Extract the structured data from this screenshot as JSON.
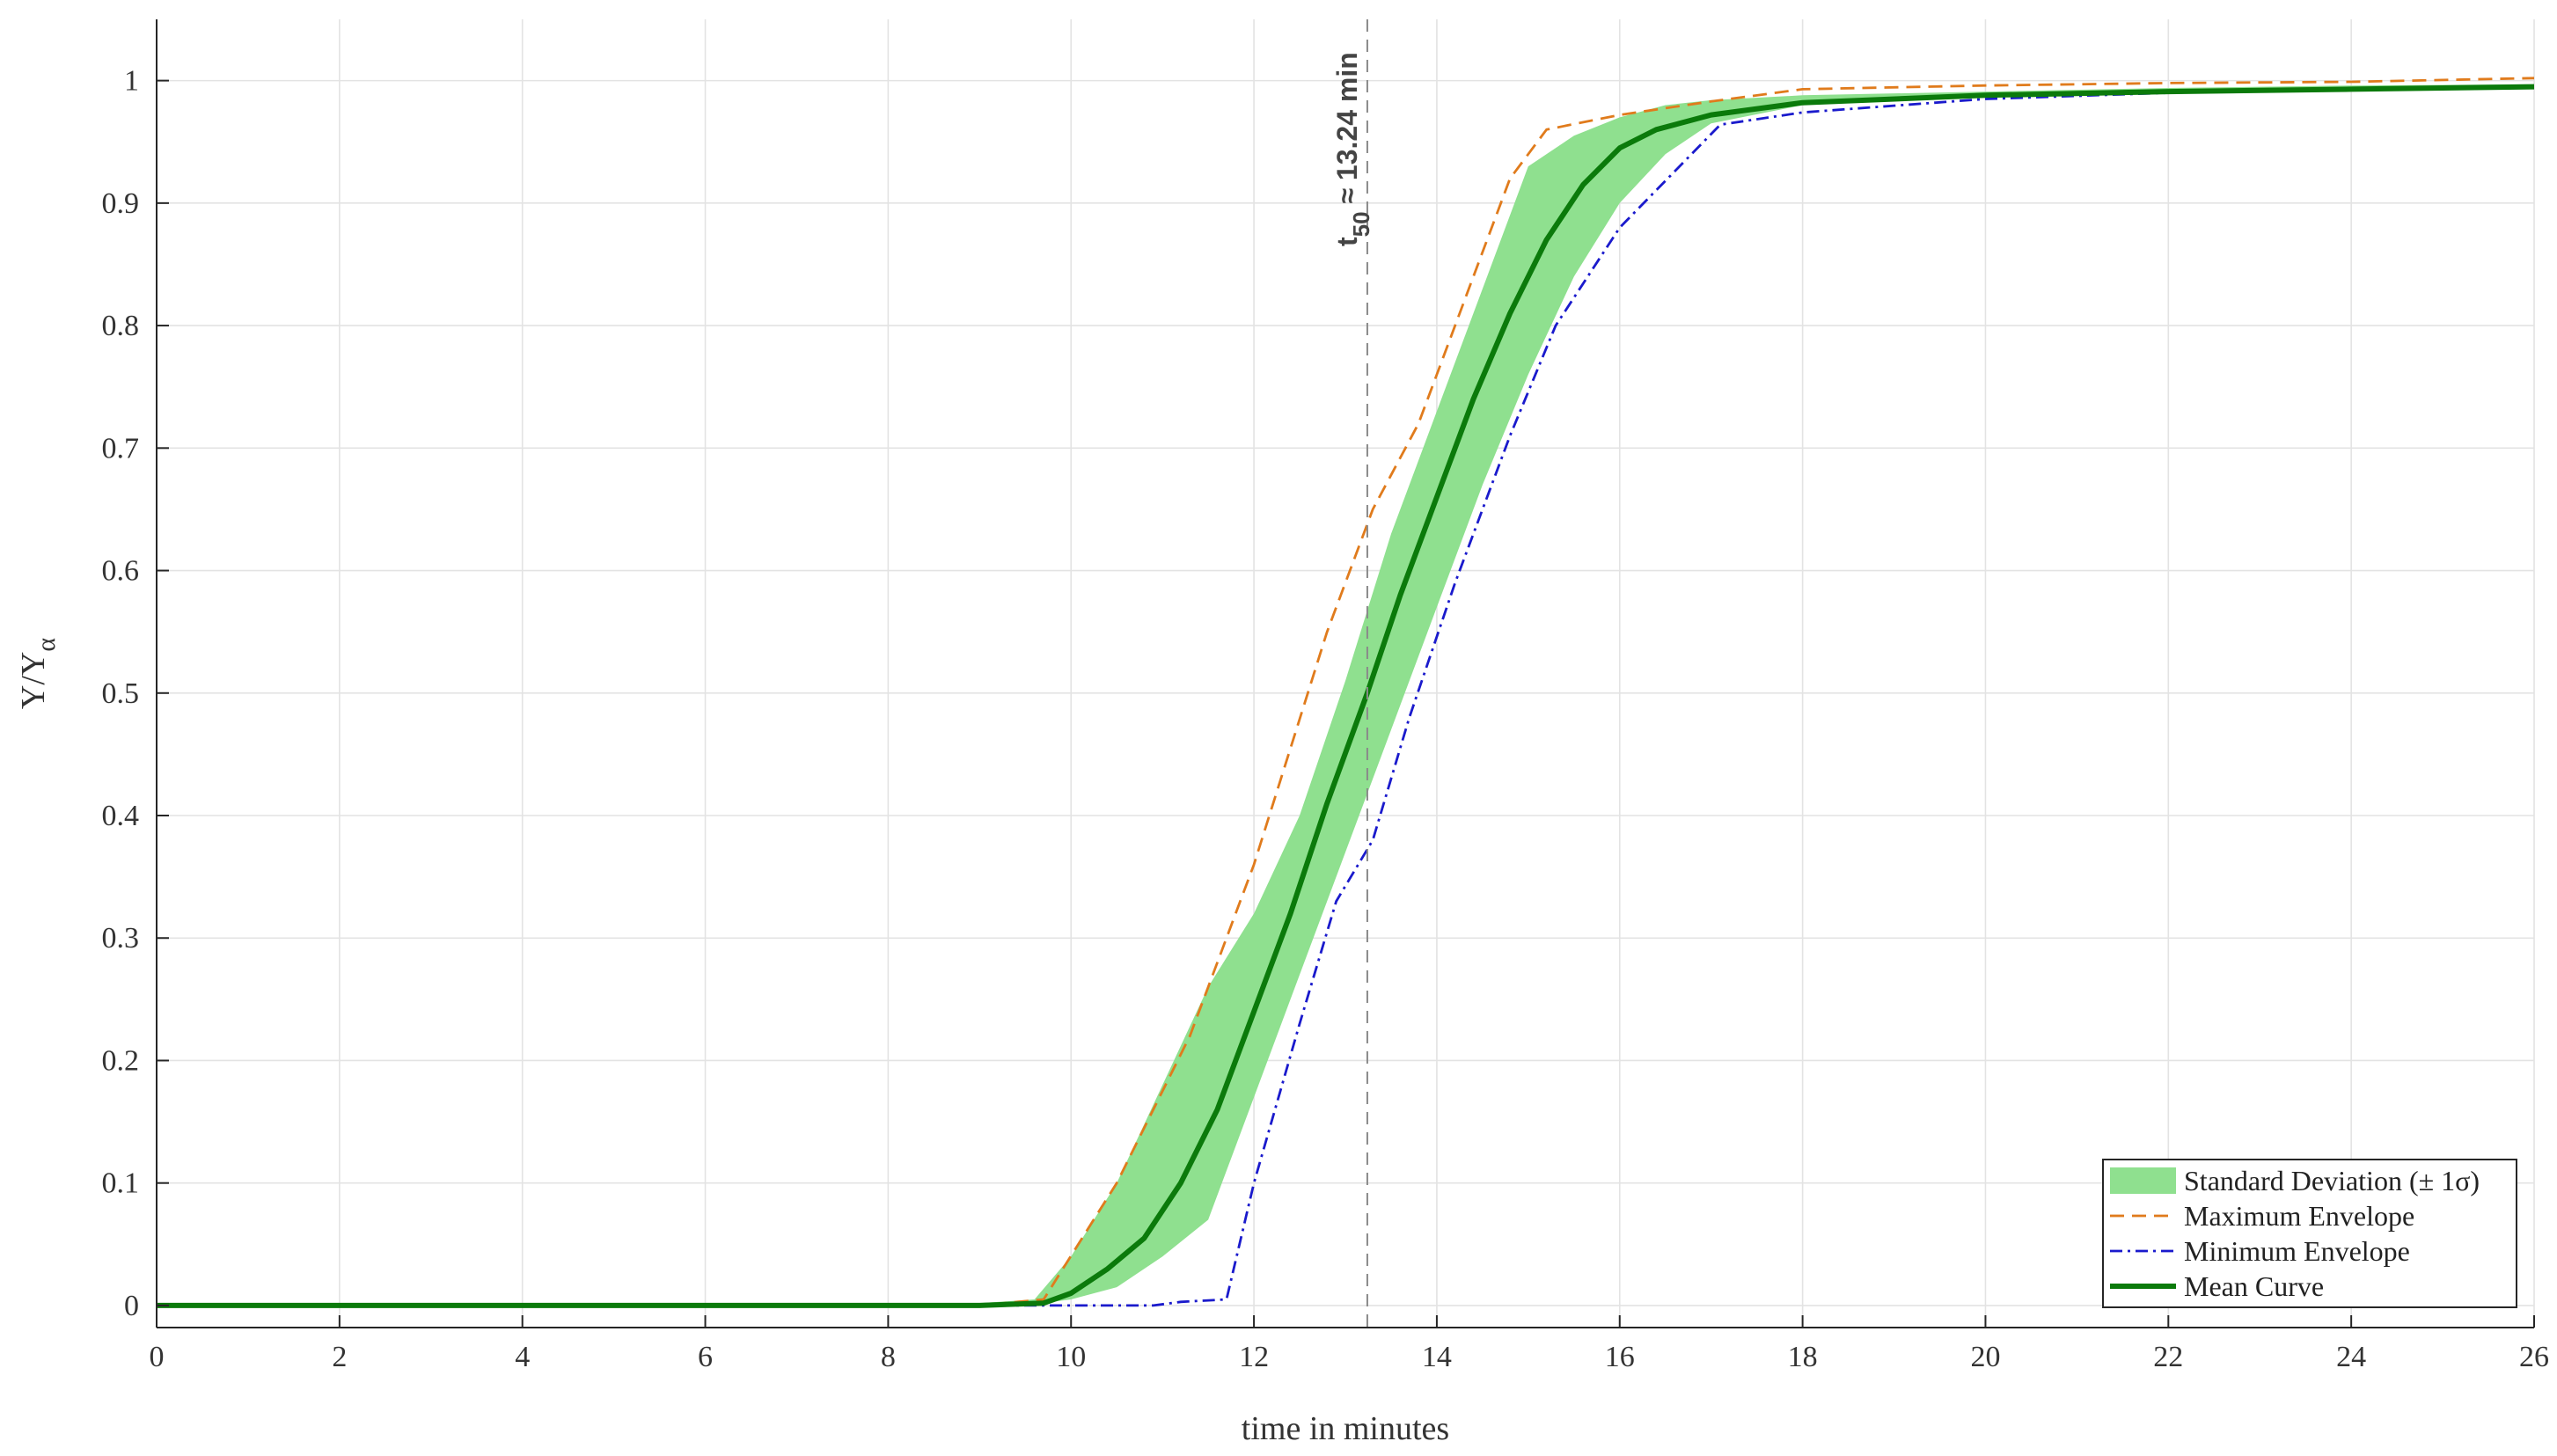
{
  "chart_data": {
    "type": "line",
    "title": "",
    "xlabel": "time in minutes",
    "ylabel": {
      "main": "Y/Y",
      "sub": "α"
    },
    "xlim": [
      0,
      26
    ],
    "ylim": [
      -0.018,
      1.05
    ],
    "xticks": [
      0,
      2,
      4,
      6,
      8,
      10,
      12,
      14,
      16,
      18,
      20,
      22,
      24,
      26
    ],
    "yticks": [
      0,
      0.1,
      0.2,
      0.3,
      0.4,
      0.5,
      0.6,
      0.7,
      0.8,
      0.9,
      1
    ],
    "grid": true,
    "legend_position": "bottom-right",
    "annotation": {
      "x": 13.24,
      "label_main": "t",
      "label_sub": "50",
      "label_rest": " ≈ 13.24 min"
    },
    "band": {
      "name": "Standard Deviation (± 1σ)",
      "color": "#8fe08f",
      "x": [
        0,
        8,
        9,
        9.6,
        10,
        10.5,
        11,
        11.5,
        12,
        12.5,
        13,
        13.5,
        14,
        14.5,
        15,
        15.5,
        16,
        16.5,
        17,
        18,
        20,
        22,
        24,
        26
      ],
      "upper": [
        0,
        0,
        0.002,
        0.005,
        0.04,
        0.1,
        0.18,
        0.26,
        0.32,
        0.4,
        0.51,
        0.63,
        0.73,
        0.83,
        0.93,
        0.955,
        0.97,
        0.98,
        0.984,
        0.988,
        0.991,
        0.994,
        0.996,
        0.997
      ],
      "lower": [
        0,
        0,
        0,
        0.001,
        0.005,
        0.015,
        0.04,
        0.07,
        0.17,
        0.27,
        0.37,
        0.47,
        0.57,
        0.67,
        0.76,
        0.84,
        0.9,
        0.94,
        0.965,
        0.98,
        0.987,
        0.991,
        0.993,
        0.995
      ]
    },
    "series": [
      {
        "name": "Maximum Envelope",
        "color": "#e07b1c",
        "style": "dashed",
        "x": [
          0,
          9,
          9.7,
          10.5,
          11.3,
          12,
          12.8,
          13.3,
          13.8,
          14.3,
          14.8,
          15.2,
          16,
          17,
          18,
          20,
          22,
          24,
          26
        ],
        "y": [
          0,
          0,
          0.005,
          0.1,
          0.22,
          0.36,
          0.55,
          0.65,
          0.72,
          0.82,
          0.92,
          0.96,
          0.972,
          0.983,
          0.993,
          0.996,
          0.998,
          0.999,
          1.002
        ]
      },
      {
        "name": "Minimum Envelope",
        "color": "#1a1acc",
        "style": "dashdot",
        "x": [
          0,
          10,
          10.9,
          11.2,
          11.7,
          12,
          12.5,
          12.9,
          13.3,
          13.7,
          14.2,
          14.8,
          15.3,
          16,
          17.1,
          18,
          20,
          22,
          24,
          26
        ],
        "y": [
          0,
          0,
          0,
          0.003,
          0.005,
          0.1,
          0.23,
          0.33,
          0.38,
          0.48,
          0.59,
          0.71,
          0.8,
          0.88,
          0.964,
          0.974,
          0.985,
          0.99,
          0.993,
          0.994
        ]
      },
      {
        "name": "Mean Curve",
        "color": "#0b7a0b",
        "style": "solid",
        "x": [
          0,
          9,
          9.7,
          10,
          10.4,
          10.8,
          11.2,
          11.6,
          12,
          12.4,
          12.8,
          13.24,
          13.6,
          14,
          14.4,
          14.8,
          15.2,
          15.6,
          16,
          16.4,
          17,
          18,
          20,
          22,
          24,
          26
        ],
        "y": [
          0,
          0,
          0.002,
          0.01,
          0.03,
          0.055,
          0.1,
          0.16,
          0.24,
          0.32,
          0.41,
          0.5,
          0.58,
          0.66,
          0.74,
          0.81,
          0.87,
          0.915,
          0.945,
          0.96,
          0.972,
          0.982,
          0.988,
          0.991,
          0.993,
          0.995
        ]
      }
    ],
    "legend": [
      {
        "kind": "band",
        "label": "Standard Deviation (± 1σ)"
      },
      {
        "kind": "line",
        "series": 0,
        "label": "Maximum Envelope"
      },
      {
        "kind": "line",
        "series": 1,
        "label": "Minimum Envelope"
      },
      {
        "kind": "line",
        "series": 2,
        "label": "Mean Curve"
      }
    ]
  }
}
